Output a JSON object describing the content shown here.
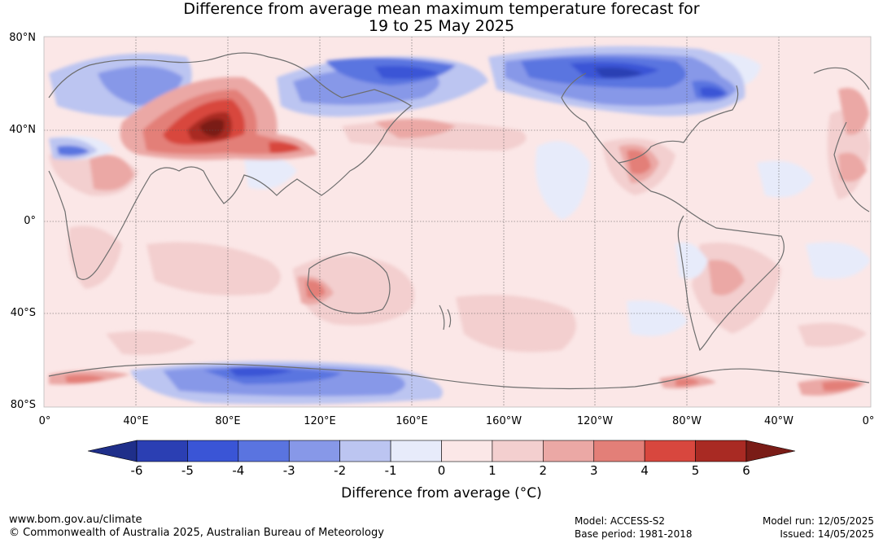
{
  "title": {
    "line1": "Difference from average mean maximum temperature forecast for",
    "line2": "19 to 25 May 2025"
  },
  "map": {
    "lat_labels": [
      "80°N",
      "40°N",
      "0°",
      "40°S",
      "80°S"
    ],
    "lon_labels": [
      "0°",
      "40°E",
      "80°E",
      "120°E",
      "160°E",
      "160°W",
      "120°W",
      "80°W",
      "40°W",
      "0°"
    ],
    "coastline_color": "#6e6e6e",
    "anomalies": [
      {
        "region": "Central Asia / Tibetan plateau",
        "level": 6
      },
      {
        "region": "Middle East",
        "level": 4
      },
      {
        "region": "Siberia / northern Russia",
        "level": -4
      },
      {
        "region": "Alaska / northwest Canada",
        "level": -5
      },
      {
        "region": "Hudson Bay / Canadian Arctic",
        "level": -4
      },
      {
        "region": "Europe",
        "level": -2
      },
      {
        "region": "Antarctica (Indian sector)",
        "level": -4
      },
      {
        "region": "Mexico",
        "level": 3
      },
      {
        "region": "Australia (southwest)",
        "level": 3
      },
      {
        "region": "Southern Ocean (Atlantic sector)",
        "level": 4
      }
    ]
  },
  "colorbar": {
    "ticks": [
      "-6",
      "-5",
      "-4",
      "-3",
      "-2",
      "-1",
      "0",
      "1",
      "2",
      "3",
      "4",
      "5",
      "6"
    ],
    "colors": [
      "#1f2f8a",
      "#2b3fb3",
      "#3a55d6",
      "#5a74e0",
      "#8798e8",
      "#bcc5f1",
      "#e7ebfa",
      "#fbe7e7",
      "#f3cfcf",
      "#eba8a5",
      "#e37f78",
      "#d8473e",
      "#a92a23",
      "#7a1c17"
    ],
    "label": "Difference from average (°C)"
  },
  "footer": {
    "url": "www.bom.gov.au/climate",
    "copyright": "© Commonwealth of Australia 2025, Australian Bureau of Meteorology",
    "model": "Model: ACCESS-S2",
    "base_period": "Base period: 1981-2018",
    "model_run": "Model run: 12/05/2025",
    "issued": "Issued: 14/05/2025"
  }
}
